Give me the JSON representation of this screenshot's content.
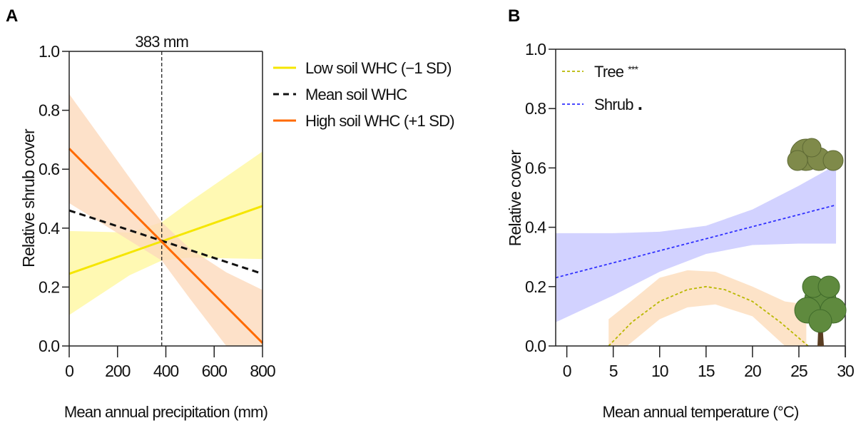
{
  "chart_data": [
    {
      "panel_label": "A",
      "type": "line",
      "xlabel": "Mean annual precipitation (mm)",
      "ylabel": "Relative shrub cover",
      "xlim": [
        0,
        800
      ],
      "ylim": [
        0,
        1
      ],
      "xticks": [
        0,
        200,
        400,
        600,
        800
      ],
      "yticks": [
        "0.0",
        "0.2",
        "0.4",
        "0.6",
        "0.8",
        "1.0"
      ],
      "annotation": {
        "text": "383 mm",
        "x": 383
      },
      "legend_placement": "right",
      "series": [
        {
          "name": "Low soil WHC (−1 SD)",
          "color": "#f5e600",
          "style": "solid",
          "x": [
            0,
            800
          ],
          "y": [
            0.245,
            0.475
          ],
          "ci": {
            "x": [
              0,
              250,
              383,
              500,
              800
            ],
            "lower": [
              0.105,
              0.24,
              0.29,
              0.3,
              0.295
            ],
            "upper": [
              0.39,
              0.385,
              0.42,
              0.49,
              0.66
            ]
          },
          "ci_color": "#fff8a0"
        },
        {
          "name": "Mean soil WHC",
          "color": "#111111",
          "style": "dashed",
          "x": [
            0,
            800
          ],
          "y": [
            0.46,
            0.245
          ]
        },
        {
          "name": "High soil WHC (+1 SD)",
          "color": "#ff6a00",
          "style": "solid",
          "x": [
            0,
            800
          ],
          "y": [
            0.67,
            0.01
          ],
          "ci": {
            "x": [
              0,
              383,
              500,
              650,
              800
            ],
            "lower": [
              0.485,
              0.29,
              0.16,
              0.0,
              0.0
            ],
            "upper": [
              0.855,
              0.42,
              0.33,
              0.25,
              0.19
            ]
          },
          "ci_color": "#fdd9bc"
        }
      ]
    },
    {
      "panel_label": "B",
      "type": "line",
      "xlabel": "Mean annual temperature (°C)",
      "ylabel": "Relative cover",
      "xlim": [
        -1.2,
        30
      ],
      "ylim": [
        0,
        1
      ],
      "xticks": [
        0,
        5,
        10,
        15,
        20,
        25,
        30
      ],
      "yticks": [
        "0.0",
        "0.2",
        "0.4",
        "0.6",
        "0.8",
        "1.0"
      ],
      "legend_placement": "top-left",
      "series": [
        {
          "name": "Tree",
          "significance": "***",
          "color": "#b8b800",
          "style": "dashed",
          "x": [
            4.5,
            7,
            10,
            13,
            15,
            17,
            20,
            23,
            26
          ],
          "y": [
            0.0,
            0.08,
            0.15,
            0.19,
            0.2,
            0.19,
            0.15,
            0.08,
            0.0
          ],
          "ci": {
            "x": [
              4.5,
              6.5,
              10,
              13,
              16,
              20,
              23.5,
              25.8
            ],
            "lower": [
              0.0,
              0.0,
              0.09,
              0.13,
              0.14,
              0.1,
              0.0,
              0.0
            ],
            "upper": [
              0.09,
              0.14,
              0.23,
              0.255,
              0.25,
              0.2,
              0.15,
              0.14
            ]
          },
          "ci_color": "#fde3c8",
          "icon": "tree-illustration"
        },
        {
          "name": "Shrub",
          "significance": ".",
          "color": "#3030ff",
          "style": "dashed",
          "x": [
            -1.2,
            29
          ],
          "y": [
            0.23,
            0.475
          ],
          "ci": {
            "x": [
              -1.2,
              5,
              10,
              15,
              20,
              25,
              29
            ],
            "lower": [
              0.08,
              0.17,
              0.25,
              0.31,
              0.34,
              0.345,
              0.345
            ],
            "upper": [
              0.38,
              0.38,
              0.385,
              0.405,
              0.46,
              0.54,
              0.61
            ]
          },
          "ci_color": "#d2d2ff",
          "icon": "shrub-illustration"
        }
      ]
    }
  ]
}
